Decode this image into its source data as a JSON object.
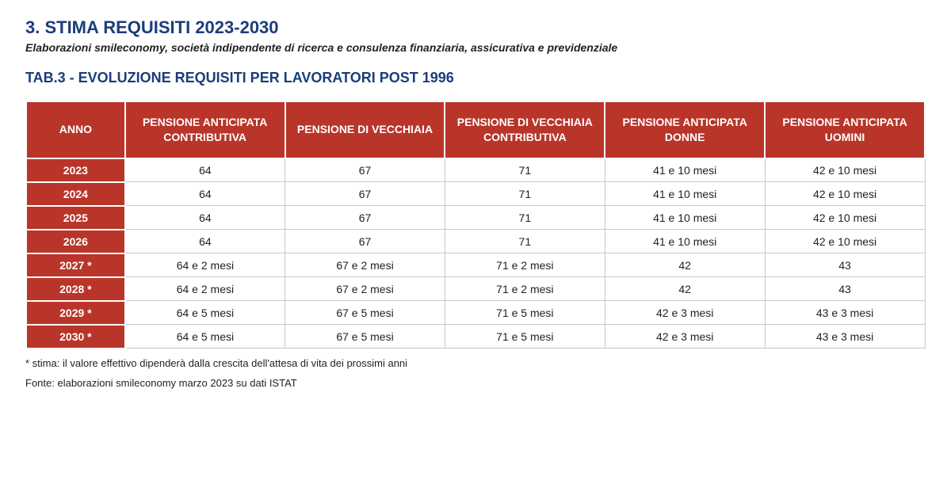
{
  "header": {
    "section_title": "3. STIMA REQUISITI 2023-2030",
    "subtitle": "Elaborazioni smileconomy, società indipendente di ricerca e consulenza finanziaria, assicurativa e previdenziale",
    "table_title": "TAB.3 - EVOLUZIONE REQUISITI PER LAVORATORI POST 1996"
  },
  "table": {
    "type": "table",
    "columns": [
      "ANNO",
      "PENSIONE ANTICIPATA CONTRIBUTIVA",
      "PENSIONE DI VECCHIAIA",
      "PENSIONE DI VECCHIAIA CONTRIBUTIVA",
      "PENSIONE ANTICIPATA DONNE",
      "PENSIONE ANTICIPATA UOMINI"
    ],
    "rows": [
      [
        "2023",
        "64",
        "67",
        "71",
        "41 e 10 mesi",
        "42 e 10 mesi"
      ],
      [
        "2024",
        "64",
        "67",
        "71",
        "41 e 10 mesi",
        "42 e 10 mesi"
      ],
      [
        "2025",
        "64",
        "67",
        "71",
        "41 e 10 mesi",
        "42 e 10 mesi"
      ],
      [
        "2026",
        "64",
        "67",
        "71",
        "41 e 10 mesi",
        "42 e 10 mesi"
      ],
      [
        "2027 *",
        "64 e 2 mesi",
        "67 e 2 mesi",
        "71 e 2 mesi",
        "42",
        "43"
      ],
      [
        "2028 *",
        "64 e 2 mesi",
        "67 e 2 mesi",
        "71 e 2 mesi",
        "42",
        "43"
      ],
      [
        "2029 *",
        "64 e 5 mesi",
        "67 e 5 mesi",
        "71 e 5 mesi",
        "42 e 3 mesi",
        "43 e 3 mesi"
      ],
      [
        "2030 *",
        "64 e 5 mesi",
        "67 e 5 mesi",
        "71 e 5 mesi",
        "42 e 3 mesi",
        "43 e 3 mesi"
      ]
    ],
    "header_bg": "#b9352a",
    "header_fg": "#ffffff",
    "year_cell_bg": "#b9352a",
    "year_cell_fg": "#ffffff",
    "cell_border": "#c8c8c8",
    "cell_bg": "#ffffff",
    "header_fontsize": 14,
    "cell_fontsize": 14
  },
  "footer": {
    "footnote": "* stima: il valore effettivo dipenderà dalla crescita dell'attesa di vita dei prossimi anni",
    "source": "Fonte: elaborazioni smileconomy marzo 2023 su dati ISTAT"
  },
  "colors": {
    "title_color": "#1a3d7c",
    "text_color": "#222222",
    "brand_red": "#b9352a",
    "background": "#ffffff"
  }
}
